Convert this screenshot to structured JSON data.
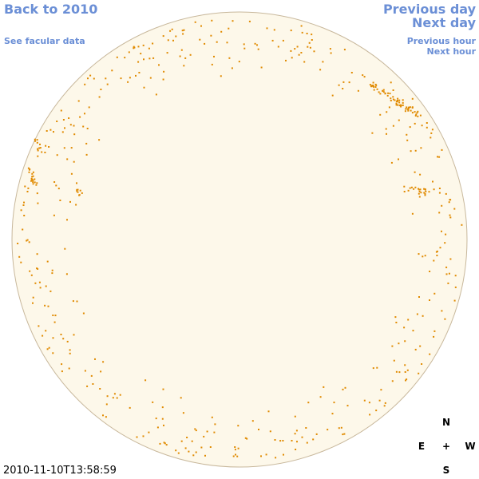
{
  "links": {
    "back": "Back to 2010",
    "facular": "See facular data",
    "previous_day": "Previous day",
    "next_day": "Next day",
    "previous_hour": "Previous hour",
    "next_hour": "Next hour"
  },
  "timestamp": "2010-11-10T13:58:59",
  "compass": {
    "north": "N",
    "east": "E",
    "center": "+",
    "west": "W",
    "south": "S"
  }
}
